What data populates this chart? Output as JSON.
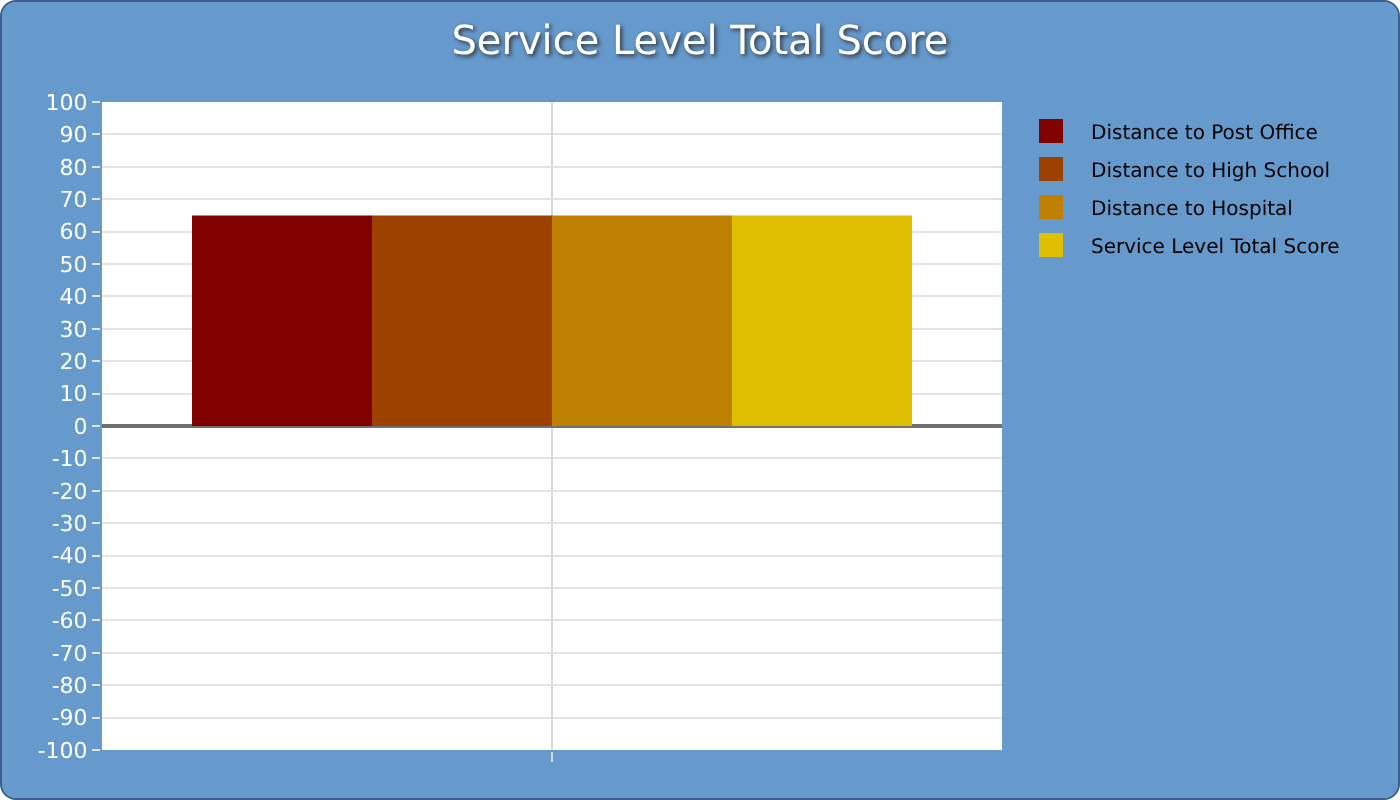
{
  "chart_data": {
    "type": "bar",
    "title": "Service Level Total Score",
    "categories": [
      null
    ],
    "series": [
      {
        "name": "Distance to Post Office",
        "color": "#800000",
        "values": [
          65
        ]
      },
      {
        "name": "Distance to High School",
        "color": "#9c4100",
        "values": [
          65
        ]
      },
      {
        "name": "Distance to Hospital",
        "color": "#bf7f00",
        "values": [
          65
        ]
      },
      {
        "name": "Service Level Total Score",
        "color": "#dfbf00",
        "values": [
          65
        ]
      }
    ],
    "ylim": [
      -100,
      100
    ],
    "yticks": [
      -100,
      -90,
      -80,
      -70,
      -60,
      -50,
      -40,
      -30,
      -20,
      -10,
      0,
      10,
      20,
      30,
      40,
      50,
      60,
      70,
      80,
      90,
      100
    ],
    "grid": true,
    "legend": "top right"
  }
}
